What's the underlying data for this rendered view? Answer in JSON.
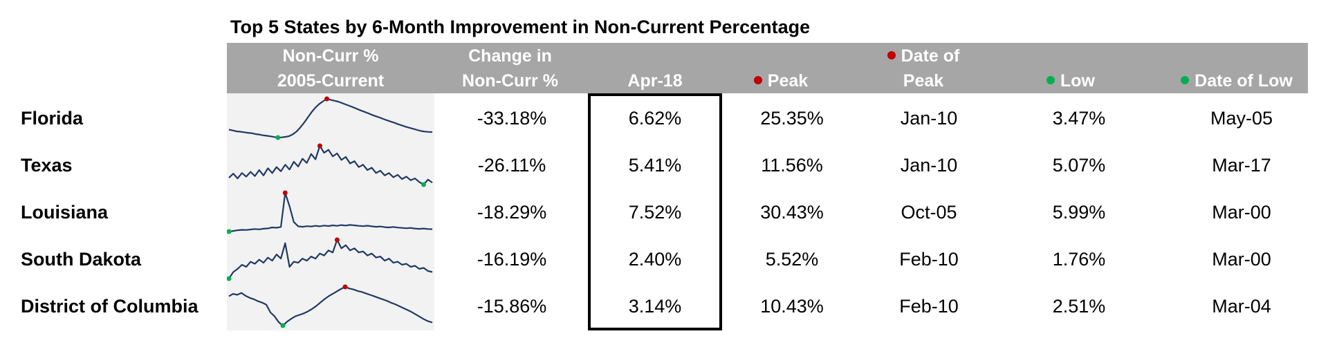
{
  "title": "Top 5 States by 6-Month Improvement in Non-Current Percentage",
  "colors": {
    "header_bg": "#a6a6a6",
    "spark_bg": "#f2f2f2",
    "line": "#1f3864",
    "peak": "#c00000",
    "low": "#00b050"
  },
  "headers": {
    "spark": [
      "Non-Curr %",
      "2005-Current"
    ],
    "change": [
      "Change in",
      "Non-Curr %"
    ],
    "current": [
      "",
      "Apr-18"
    ],
    "peak": [
      "",
      "Peak"
    ],
    "date_peak": [
      "Date of",
      "Peak"
    ],
    "low": [
      "",
      "Low"
    ],
    "date_low": [
      "",
      "Date of Low"
    ]
  },
  "chart_data": {
    "type": "table",
    "title": "Top 5 States by 6-Month Improvement in Non-Current Percentage",
    "columns": [
      "Non-Curr % 2005-Current",
      "Change in Non-Curr %",
      "Apr-18",
      "Peak",
      "Date of Peak",
      "Low",
      "Date of Low"
    ],
    "rows": [
      {
        "state": "Florida",
        "change": "-33.18%",
        "current": "6.62%",
        "peak": "25.35%",
        "date_peak": "Jan-10",
        "low": "3.47%",
        "date_low": "May-05",
        "spark": [
          8,
          7.5,
          7,
          6.8,
          6.5,
          6.2,
          6,
          5.5,
          5.2,
          4.8,
          4.5,
          4.2,
          3.8,
          3.5,
          3.6,
          3.9,
          4.3,
          5.4,
          7,
          9.3,
          12,
          15,
          18,
          20.5,
          22.5,
          24,
          25.35,
          24.8,
          24.3,
          23.8,
          23,
          22.2,
          21.4,
          20.6,
          19.7,
          18.8,
          18,
          17.2,
          16.3,
          15.5,
          14.8,
          14,
          13.2,
          12.5,
          11.8,
          11,
          10.3,
          9.6,
          9,
          8.4,
          7.8,
          7.2,
          6.9,
          6.7,
          6.62
        ]
      },
      {
        "state": "Texas",
        "change": "-26.11%",
        "current": "5.41%",
        "peak": "11.56%",
        "date_peak": "Jan-10",
        "low": "5.07%",
        "date_low": "Mar-17",
        "spark": [
          6.2,
          6.9,
          6.1,
          7.0,
          6.4,
          7.2,
          6.5,
          7.5,
          6.6,
          7.8,
          7.0,
          8.0,
          7.3,
          8.4,
          7.6,
          8.9,
          8.1,
          9.4,
          8.7,
          10.2,
          9.3,
          11.56,
          10.4,
          10.9,
          9.8,
          10.3,
          9.2,
          9.7,
          8.6,
          9.0,
          8.0,
          8.4,
          7.5,
          7.9,
          7.0,
          7.4,
          6.6,
          7.0,
          6.3,
          6.7,
          6.0,
          6.4,
          5.8,
          6.1,
          5.5,
          5.07,
          5.9,
          5.41
        ]
      },
      {
        "state": "Louisiana",
        "change": "-18.29%",
        "current": "7.52%",
        "peak": "30.43%",
        "date_peak": "Oct-05",
        "low": "5.99%",
        "date_low": "Mar-00",
        "spark": [
          5.99,
          6.4,
          6.8,
          7.1,
          7.0,
          7.3,
          7.6,
          7.4,
          7.8,
          8.0,
          8.6,
          8.4,
          8.9,
          30.43,
          22,
          12,
          9.3,
          9.0,
          9.4,
          9.2,
          9.6,
          9.3,
          9.8,
          9.5,
          9.9,
          9.6,
          10.1,
          9.8,
          10.2,
          9.9,
          9.6,
          9.4,
          9.7,
          9.3,
          9.0,
          9.2,
          8.8,
          8.6,
          8.9,
          8.5,
          8.3,
          8.1,
          8.3,
          7.9,
          7.7,
          7.9,
          7.6,
          7.52
        ]
      },
      {
        "state": "South Dakota",
        "change": "-16.19%",
        "current": "2.40%",
        "peak": "5.52%",
        "date_peak": "Feb-10",
        "low": "1.76%",
        "date_low": "Mar-00",
        "spark": [
          1.76,
          2.4,
          2.7,
          3.1,
          2.9,
          3.4,
          3.2,
          3.6,
          3.3,
          3.8,
          3.5,
          4.1,
          3.7,
          5.2,
          2.9,
          3.4,
          3.3,
          3.7,
          3.5,
          3.9,
          3.7,
          4.2,
          4.0,
          4.5,
          4.3,
          5.52,
          4.7,
          5.0,
          4.5,
          4.7,
          4.3,
          4.4,
          4.0,
          4.2,
          3.8,
          3.9,
          3.5,
          3.7,
          3.3,
          3.4,
          3.1,
          3.2,
          2.9,
          3.0,
          2.7,
          2.8,
          2.5,
          2.4
        ]
      },
      {
        "state": "District of Columbia",
        "change": "-15.86%",
        "current": "3.14%",
        "peak": "10.43%",
        "date_peak": "Feb-10",
        "low": "2.51%",
        "date_low": "Mar-04",
        "spark": [
          8.5,
          9.0,
          8.8,
          9.2,
          8.6,
          8.2,
          7.9,
          7.5,
          7.2,
          6.8,
          5.2,
          4.4,
          3.2,
          2.51,
          3.3,
          3.9,
          4.4,
          4.7,
          5.0,
          5.4,
          5.9,
          6.5,
          7.2,
          7.9,
          8.5,
          9.0,
          9.5,
          10.0,
          10.43,
          10.1,
          9.9,
          9.6,
          9.4,
          9.1,
          8.8,
          8.5,
          8.2,
          7.9,
          7.6,
          7.2,
          6.9,
          6.5,
          6.1,
          5.7,
          5.3,
          4.8,
          4.3,
          3.8,
          3.4,
          3.14
        ]
      }
    ]
  }
}
